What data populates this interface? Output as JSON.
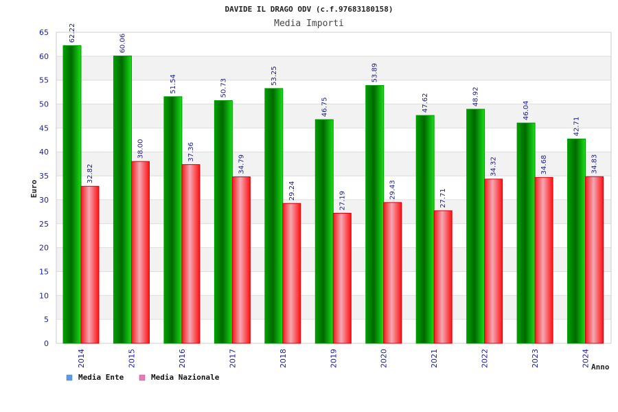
{
  "chart_data": {
    "type": "bar",
    "title": "DAVIDE IL DRAGO ODV (c.f.97683180158)",
    "subtitle": "Media Importi",
    "xlabel": "Anno",
    "ylabel": "Euro",
    "ylim": [
      0,
      65
    ],
    "yticks": [
      0,
      5,
      10,
      15,
      20,
      25,
      30,
      35,
      40,
      45,
      50,
      55,
      60,
      65
    ],
    "categories": [
      "2014",
      "2015",
      "2016",
      "2017",
      "2018",
      "2019",
      "2020",
      "2021",
      "2022",
      "2023",
      "2024"
    ],
    "series": [
      {
        "name": "Media Ente",
        "color": "#00b400",
        "values": [
          62.22,
          60.06,
          51.54,
          50.73,
          53.25,
          46.75,
          53.89,
          47.62,
          48.92,
          46.04,
          42.71
        ],
        "labels": [
          "62.22",
          "60.06",
          "51.54",
          "50.73",
          "53.25",
          "46.75",
          "53.89",
          "47.62",
          "48.92",
          "46.04",
          "42.71"
        ]
      },
      {
        "name": "Media Nazionale",
        "color": "#e8101e",
        "values": [
          32.82,
          38.0,
          37.36,
          34.79,
          29.24,
          27.19,
          29.43,
          27.71,
          34.32,
          34.68,
          34.83
        ],
        "labels": [
          "32.82",
          "38.00",
          "37.36",
          "34.79",
          "29.24",
          "27.19",
          "29.43",
          "27.71",
          "34.32",
          "34.68",
          "34.83"
        ]
      }
    ],
    "legend": [
      {
        "label": "Media Ente",
        "swatch": "#5b9be0"
      },
      {
        "label": "Media Nazionale",
        "swatch": "#e47ab8"
      }
    ],
    "grid": true,
    "legend_position": "bottom-left"
  }
}
